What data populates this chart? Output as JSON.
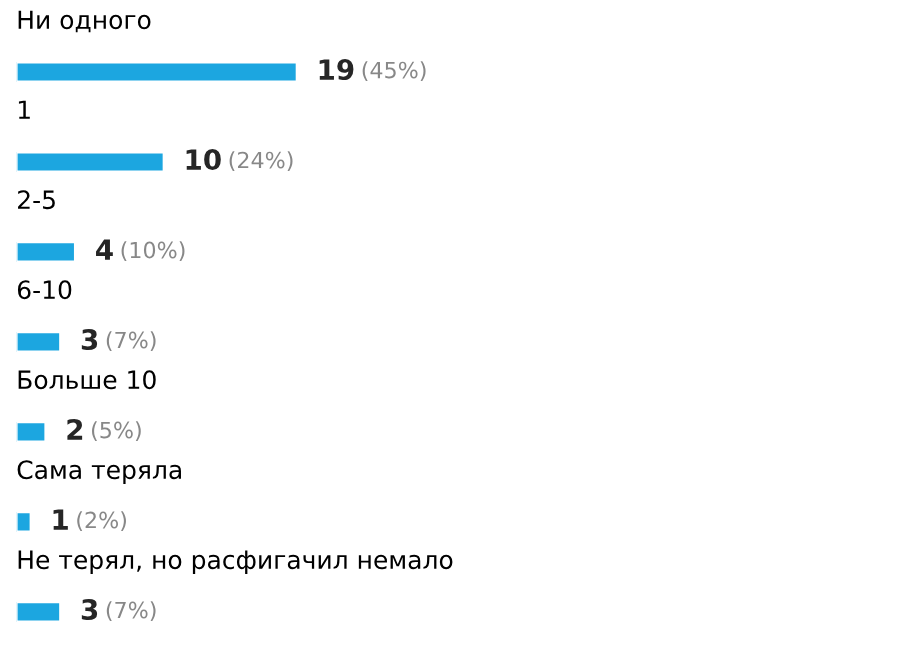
{
  "chart_data": {
    "type": "bar",
    "orientation": "horizontal",
    "categories": [
      "Ни одного",
      "1",
      "2-5",
      "6-10",
      "Больше 10",
      "Сама теряла",
      "Не терял, но расфигачил немало"
    ],
    "values": [
      19,
      10,
      4,
      3,
      2,
      1,
      3
    ],
    "value_labels": [
      "19 (45%)",
      "10 (24%)",
      "4 (10%)",
      "3 (7%)",
      "2 (5%)",
      "1 (2%)",
      "3 (7%)"
    ],
    "color": "#1ca6e0"
  }
}
